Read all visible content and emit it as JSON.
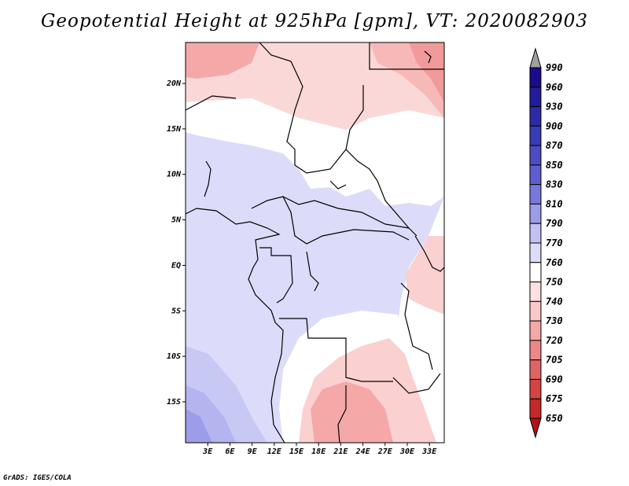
{
  "title": "Geopotential Height at 925hPa [gpm], VT: 2020082903",
  "credit": "GrADS: IGES/COLA",
  "map": {
    "lat_labels": [
      "20N",
      "15N",
      "10N",
      "5N",
      "EQ",
      "5S",
      "10S",
      "15S"
    ],
    "lat_values": [
      20,
      15,
      10,
      5,
      0,
      -5,
      -10,
      -15
    ],
    "lon_labels": [
      "3E",
      "6E",
      "9E",
      "12E",
      "15E",
      "18E",
      "21E",
      "24E",
      "27E",
      "30E",
      "33E"
    ],
    "lon_values": [
      3,
      6,
      9,
      12,
      15,
      18,
      21,
      24,
      27,
      30,
      33
    ],
    "lon_range": [
      0,
      35
    ],
    "lat_range": [
      -19.5,
      24.5
    ]
  },
  "colorbar": {
    "levels": [
      "990",
      "960",
      "930",
      "900",
      "870",
      "850",
      "830",
      "810",
      "790",
      "770",
      "760",
      "750",
      "740",
      "730",
      "720",
      "705",
      "690",
      "675",
      "650"
    ],
    "colors": [
      "#1a0b8c",
      "#241a9c",
      "#2d2aa8",
      "#3b3bb5",
      "#4c4cc4",
      "#5e5ed0",
      "#7878dc",
      "#9c9ce8",
      "#c2c2f2",
      "#dcdcfa",
      "#ffffff",
      "#fde0e0",
      "#fbc8c8",
      "#f4a8a8",
      "#ec8888",
      "#e06464",
      "#d44444",
      "#c42828",
      "#ae1414"
    ]
  }
}
